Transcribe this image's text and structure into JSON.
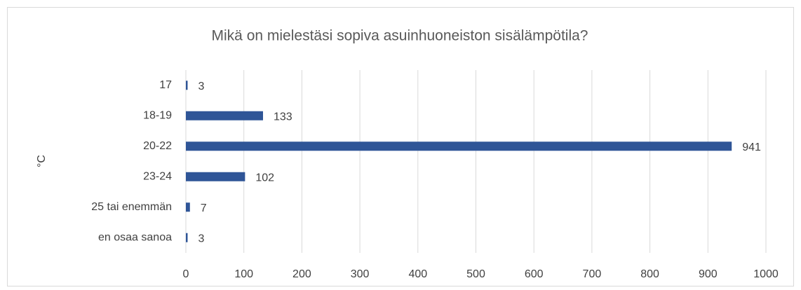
{
  "chart_data": {
    "type": "barh",
    "title": "Mikä on mielestäsi sopiva asuinhuoneiston sisälämpötila?",
    "y_label": "°C",
    "categories": [
      "17",
      "18-19",
      "20-22",
      "23-24",
      "25 tai enemmän",
      "en osaa sanoa"
    ],
    "values": [
      3,
      133,
      941,
      102,
      7,
      3
    ],
    "color": "#2f5597",
    "xlim": [
      0,
      1000
    ],
    "xticks": [
      0,
      100,
      200,
      300,
      400,
      500,
      600,
      700,
      800,
      900,
      1000
    ],
    "grid": true
  }
}
